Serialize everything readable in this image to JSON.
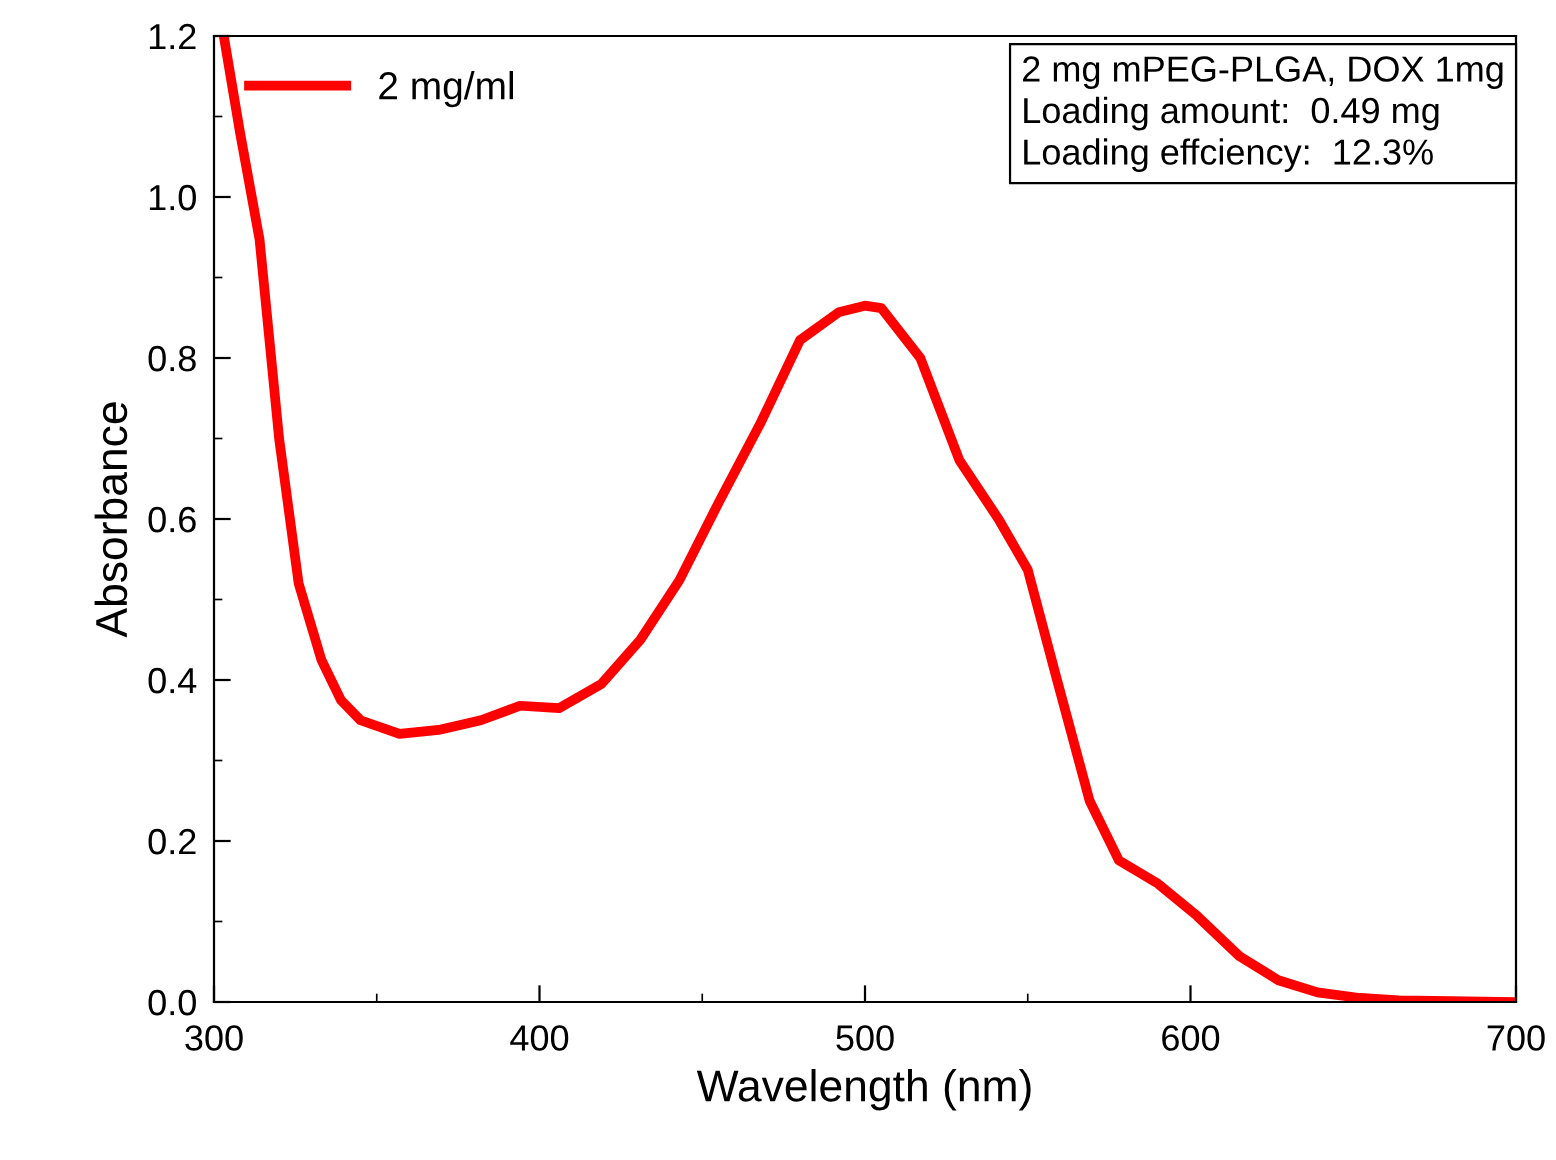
{
  "chart_data": {
    "type": "line",
    "xlabel": "Wavelength (nm)",
    "ylabel": "Absorbance",
    "x": [
      303,
      308,
      314,
      320,
      326,
      333,
      339,
      345,
      357,
      369,
      382,
      394,
      406,
      419,
      431,
      443,
      455,
      468,
      480,
      492,
      500,
      505,
      517,
      529,
      541,
      550,
      559,
      569,
      578,
      590,
      602,
      615,
      627,
      639,
      652,
      664,
      680,
      700
    ],
    "series": [
      {
        "name": "2 mg/ml",
        "color": "#ff0000",
        "values": [
          1.2,
          1.08,
          0.947,
          0.7,
          0.52,
          0.425,
          0.375,
          0.35,
          0.333,
          0.338,
          0.35,
          0.368,
          0.365,
          0.395,
          0.45,
          0.524,
          0.62,
          0.72,
          0.822,
          0.857,
          0.865,
          0.862,
          0.8,
          0.673,
          0.6,
          0.537,
          0.4,
          0.25,
          0.176,
          0.147,
          0.107,
          0.057,
          0.027,
          0.012,
          0.005,
          0.002,
          0.001,
          0.0
        ]
      }
    ],
    "xlim": [
      300,
      700
    ],
    "ylim": [
      0,
      1.2
    ],
    "xticks": [
      300,
      400,
      500,
      600,
      700
    ],
    "yticks": [
      {
        "value": 0,
        "label": "0.0"
      },
      0.2,
      0.4,
      0.6,
      0.8,
      {
        "value": 1,
        "label": "1.0"
      },
      1.2
    ],
    "legend": "top left",
    "grid": false,
    "line_style": "solid",
    "marker": "none",
    "annotations": [
      "2 mg mPEG-PLGA, DOX 1mg\nLoading amount:  0.49 mg\nLoading effciency:  12.3%"
    ]
  }
}
